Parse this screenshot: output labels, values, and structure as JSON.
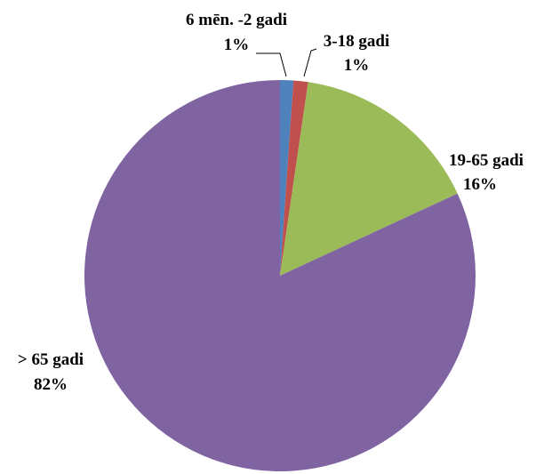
{
  "chart_data": {
    "type": "pie",
    "title": "",
    "start_angle_deg": 0,
    "direction": "clockwise",
    "legend": "none",
    "slices": [
      {
        "category": "6 mēn. -2 gadi",
        "value": 1.1,
        "percent_label": "1%",
        "color": "#4f81bd"
      },
      {
        "category": "3-18 gadi",
        "value": 1.2,
        "percent_label": "1%",
        "color": "#c0504d"
      },
      {
        "category": "19-65 gadi",
        "value": 15.8,
        "percent_label": "16%",
        "color": "#9bbb59"
      },
      {
        "category": "> 65 gadi",
        "value": 81.9,
        "percent_label": "82%",
        "color": "#8064a2"
      }
    ]
  }
}
